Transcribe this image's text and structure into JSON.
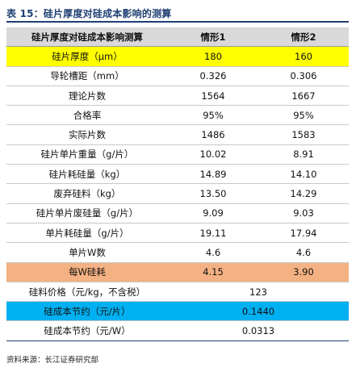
{
  "title": "表 15：硅片厚度对硅成本影响的测算",
  "header": {
    "col0": "硅片厚度对硅成本影响测算",
    "col1": "情形1",
    "col2": "情形2"
  },
  "rows": [
    {
      "label": "硅片厚度（μm）",
      "v1": "180",
      "v2": "160"
    },
    {
      "label": "导轮槽距（mm）",
      "v1": "0.326",
      "v2": "0.306"
    },
    {
      "label": "理论片数",
      "v1": "1564",
      "v2": "1667"
    },
    {
      "label": "合格率",
      "v1": "95%",
      "v2": "95%"
    },
    {
      "label": "实际片数",
      "v1": "1486",
      "v2": "1583"
    },
    {
      "label": "硅片单片重量（g/片）",
      "v1": "10.02",
      "v2": "8.91"
    },
    {
      "label": "硅片耗硅量（kg）",
      "v1": "14.89",
      "v2": "14.10"
    },
    {
      "label": "废弃硅料（kg）",
      "v1": "13.50",
      "v2": "14.29"
    },
    {
      "label": "硅片单片废硅量（g/片）",
      "v1": "9.09",
      "v2": "9.03"
    },
    {
      "label": "单片耗硅量（g/片）",
      "v1": "19.11",
      "v2": "17.94"
    },
    {
      "label": "单片W数",
      "v1": "4.6",
      "v2": "4.6"
    },
    {
      "label": "每W硅耗",
      "v1": "4.15",
      "v2": "3.90"
    }
  ],
  "merged_rows": [
    {
      "label": "硅料价格（元/kg，不含税）",
      "value": "123"
    },
    {
      "label": "硅成本节约（元/片）",
      "value": "0.1440"
    },
    {
      "label": "硅成本节约（元/W）",
      "value": "0.0313"
    }
  ],
  "source": "资料来源：长江证券研究部",
  "colors": {
    "title": "#1f3f73",
    "header_bg": "#d9d9d9",
    "highlight_yellow": "#ffff00",
    "highlight_orange": "#f4b183",
    "highlight_blue": "#00b0f0"
  }
}
